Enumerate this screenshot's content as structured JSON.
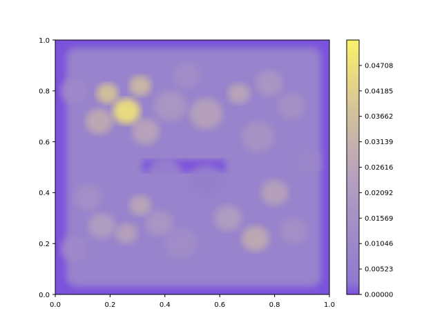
{
  "chart_data": {
    "type": "heatmap",
    "title": "",
    "xlabel": "",
    "ylabel": "",
    "xlim": [
      0.0,
      1.0
    ],
    "ylim": [
      0.0,
      1.0
    ],
    "xticks": [
      "0.0",
      "0.2",
      "0.4",
      "0.6",
      "0.8",
      "1.0"
    ],
    "yticks": [
      "0.0",
      "0.2",
      "0.4",
      "0.6",
      "0.8",
      "1.0"
    ],
    "grid": false,
    "legend": "none",
    "colormap": {
      "name": "purple-to-yellow filled contour",
      "low_color": "#7b52dc",
      "mid_color": "#b49fc0",
      "high_color": "#fcf16a",
      "min": 0.0,
      "max": 0.0523,
      "ticks": [
        "0.00000",
        "0.00523",
        "0.01046",
        "0.01569",
        "0.02092",
        "0.02616",
        "0.03139",
        "0.03662",
        "0.04185",
        "0.04708"
      ]
    },
    "features": [
      {
        "x": 0.26,
        "y": 0.72,
        "value": 0.05,
        "spread": 0.05
      },
      {
        "x": 0.19,
        "y": 0.79,
        "value": 0.04,
        "spread": 0.04
      },
      {
        "x": 0.31,
        "y": 0.82,
        "value": 0.036,
        "spread": 0.04
      },
      {
        "x": 0.16,
        "y": 0.68,
        "value": 0.03,
        "spread": 0.05
      },
      {
        "x": 0.33,
        "y": 0.64,
        "value": 0.027,
        "spread": 0.05
      },
      {
        "x": 0.42,
        "y": 0.74,
        "value": 0.02,
        "spread": 0.06
      },
      {
        "x": 0.55,
        "y": 0.71,
        "value": 0.026,
        "spread": 0.06
      },
      {
        "x": 0.67,
        "y": 0.79,
        "value": 0.028,
        "spread": 0.04
      },
      {
        "x": 0.78,
        "y": 0.83,
        "value": 0.02,
        "spread": 0.05
      },
      {
        "x": 0.86,
        "y": 0.74,
        "value": 0.017,
        "spread": 0.05
      },
      {
        "x": 0.74,
        "y": 0.62,
        "value": 0.018,
        "spread": 0.06
      },
      {
        "x": 0.8,
        "y": 0.4,
        "value": 0.026,
        "spread": 0.05
      },
      {
        "x": 0.73,
        "y": 0.22,
        "value": 0.03,
        "spread": 0.05
      },
      {
        "x": 0.63,
        "y": 0.3,
        "value": 0.024,
        "spread": 0.05
      },
      {
        "x": 0.87,
        "y": 0.25,
        "value": 0.016,
        "spread": 0.05
      },
      {
        "x": 0.31,
        "y": 0.35,
        "value": 0.028,
        "spread": 0.04
      },
      {
        "x": 0.26,
        "y": 0.24,
        "value": 0.026,
        "spread": 0.04
      },
      {
        "x": 0.17,
        "y": 0.27,
        "value": 0.024,
        "spread": 0.05
      },
      {
        "x": 0.12,
        "y": 0.38,
        "value": 0.016,
        "spread": 0.05
      },
      {
        "x": 0.38,
        "y": 0.28,
        "value": 0.02,
        "spread": 0.05
      },
      {
        "x": 0.46,
        "y": 0.2,
        "value": 0.014,
        "spread": 0.06
      },
      {
        "x": 0.07,
        "y": 0.8,
        "value": 0.012,
        "spread": 0.05
      },
      {
        "x": 0.48,
        "y": 0.86,
        "value": 0.015,
        "spread": 0.05
      },
      {
        "x": 0.92,
        "y": 0.52,
        "value": 0.01,
        "spread": 0.05
      },
      {
        "x": 0.07,
        "y": 0.18,
        "value": 0.012,
        "spread": 0.05
      },
      {
        "x": 0.55,
        "y": 0.45,
        "value": 0.006,
        "spread": 0.06
      },
      {
        "x": 0.4,
        "y": 0.48,
        "value": 0.008,
        "spread": 0.06
      }
    ]
  }
}
